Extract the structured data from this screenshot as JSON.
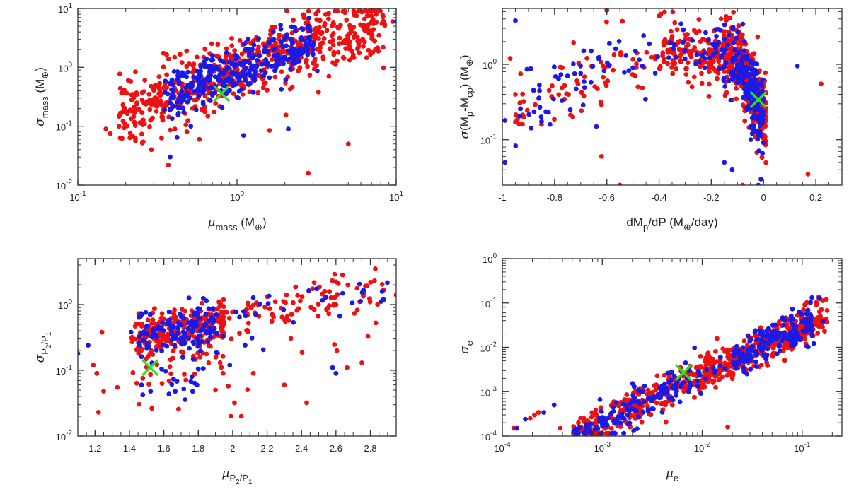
{
  "colors": {
    "group_a": "#ee1111",
    "group_b": "#1a1ae6",
    "highlight": "#33dd22",
    "axis": "#333333",
    "background": "#ffffff"
  },
  "chart_data": [
    {
      "id": "mass",
      "type": "scatter",
      "xscale": "log",
      "yscale": "log",
      "xlim": [
        0.1,
        10
      ],
      "ylim": [
        0.01,
        10
      ],
      "xticks": [
        {
          "v": 0.1,
          "base": "10",
          "exp": "-1"
        },
        {
          "v": 1,
          "base": "10",
          "exp": "0"
        },
        {
          "v": 10,
          "base": "10",
          "exp": "1"
        }
      ],
      "yticks": [
        {
          "v": 0.01,
          "base": "10",
          "exp": "-2"
        },
        {
          "v": 0.1,
          "base": "10",
          "exp": "-1"
        },
        {
          "v": 1,
          "base": "10",
          "exp": "0"
        },
        {
          "v": 10,
          "base": "10",
          "exp": "1"
        }
      ],
      "xlabel": {
        "symbol": "μ",
        "sub": "mass",
        "unit": " (M",
        "unit_sub": "⊕",
        "unit_end": ")"
      },
      "ylabel": {
        "symbol": "σ",
        "sub": "mass",
        "unit": " (M",
        "unit_sub": "⊕",
        "unit_end": ")"
      },
      "highlight": {
        "x": 0.8,
        "y": 0.36
      },
      "cloud": {
        "seed": 11,
        "red": 620,
        "blue": 330,
        "xmin": 0.15,
        "xmax": 9.5,
        "slope": 1.05,
        "anchor_x": 1.0,
        "anchor_y": 0.9,
        "spread": 0.32,
        "blue_xmin": 0.35,
        "blue_xmax": 3.2
      },
      "series": [
        {
          "name": "red",
          "x": [
            0.15,
            0.16,
            0.37,
            0.29,
            2.8,
            5.0,
            1.6,
            9.5,
            7.2,
            0.58
          ],
          "y": [
            0.09,
            0.075,
            0.022,
            0.04,
            0.016,
            0.05,
            0.085,
            6.0,
            5.5,
            0.06
          ]
        },
        {
          "name": "blue",
          "x": [
            0.42,
            1.1,
            2.1,
            10.0,
            0.38
          ],
          "y": [
            0.065,
            0.07,
            0.09,
            6.0,
            0.03
          ]
        }
      ]
    },
    {
      "id": "dmdp",
      "type": "scatter",
      "xscale": "linear",
      "yscale": "log",
      "xlim": [
        -1,
        0.3
      ],
      "ylim": [
        0.025,
        5.5
      ],
      "xticks": [
        {
          "v": -1,
          "t": "-1"
        },
        {
          "v": -0.8,
          "t": "-0.8"
        },
        {
          "v": -0.6,
          "t": "-0.6"
        },
        {
          "v": -0.4,
          "t": "-0.4"
        },
        {
          "v": -0.2,
          "t": "-0.2"
        },
        {
          "v": 0,
          "t": "0"
        },
        {
          "v": 0.2,
          "t": "0.2"
        }
      ],
      "yticks": [
        {
          "v": 0.1,
          "base": "10",
          "exp": "-1"
        },
        {
          "v": 1,
          "base": "10",
          "exp": "0"
        }
      ],
      "xlabel": {
        "text": "dM",
        "sub": "p",
        "text2": "/dP  (M",
        "sub2": "⊕",
        "text3": "/day)"
      },
      "ylabel": {
        "symbol": "σ",
        "text": "(M",
        "sub": "p",
        "text2": "-M",
        "sub2": "cp",
        "text3": ")  (M",
        "sub3": "⊕",
        "text4": ")"
      },
      "highlight": {
        "x": -0.02,
        "y": 0.34
      },
      "cloud": {
        "seed": 23,
        "red": 560,
        "blue": 300
      },
      "series": [
        {
          "name": "red",
          "x": [
            -0.6,
            -0.97,
            -0.93,
            -0.73,
            -0.62,
            -0.55,
            -0.08,
            0.17,
            0.22,
            -0.85,
            -0.95
          ],
          "y": [
            5.2,
            1.2,
            0.75,
            0.2,
            0.06,
            0.025,
            0.025,
            0.035,
            0.55,
            0.16,
            0.4
          ]
        },
        {
          "name": "blue",
          "x": [
            -0.95,
            -0.99,
            -0.88,
            -0.74,
            -0.64,
            -0.5,
            0.13,
            -0.12,
            -0.15,
            -0.02,
            -0.01,
            -0.99
          ],
          "y": [
            3.8,
            0.18,
            0.45,
            0.25,
            0.15,
            0.9,
            0.95,
            0.04,
            0.05,
            0.025,
            0.03,
            0.05
          ]
        }
      ]
    },
    {
      "id": "period",
      "type": "scatter",
      "xscale": "linear",
      "yscale": "log",
      "xlim": [
        1.1,
        2.95
      ],
      "ylim": [
        0.01,
        5
      ],
      "xticks": [
        {
          "v": 1.2,
          "t": "1.2"
        },
        {
          "v": 1.4,
          "t": "1.4"
        },
        {
          "v": 1.6,
          "t": "1.6"
        },
        {
          "v": 1.8,
          "t": "1.8"
        },
        {
          "v": 2.0,
          "t": "2"
        },
        {
          "v": 2.2,
          "t": "2.2"
        },
        {
          "v": 2.4,
          "t": "2.4"
        },
        {
          "v": 2.6,
          "t": "2.6"
        },
        {
          "v": 2.8,
          "t": "2.8"
        }
      ],
      "yticks": [
        {
          "v": 0.01,
          "base": "10",
          "exp": "-2"
        },
        {
          "v": 0.1,
          "base": "10",
          "exp": "-1"
        },
        {
          "v": 1,
          "base": "10",
          "exp": "0"
        }
      ],
      "xlabel": {
        "symbol": "μ",
        "sub": "P",
        "subsub": "2",
        "sub_mid": "/P",
        "subsub2": "1"
      },
      "ylabel": {
        "symbol": "σ",
        "sub": "P",
        "subsub": "2",
        "sub_mid": "/P",
        "subsub2": "1"
      },
      "highlight": {
        "x": 1.52,
        "y": 0.11
      },
      "cloud": {
        "seed": 37,
        "red": 380,
        "blue": 190
      },
      "series": [
        {
          "name": "red",
          "x": [
            1.22,
            1.25,
            1.19,
            1.21,
            1.33,
            1.99,
            2.01,
            2.05,
            2.43,
            2.75,
            2.95,
            1.24,
            2.3,
            2.12,
            1.9,
            1.86
          ],
          "y": [
            0.023,
            0.048,
            0.12,
            0.09,
            0.055,
            0.02,
            0.032,
            0.02,
            0.032,
            0.13,
            1.4,
            0.38,
            0.06,
            0.09,
            0.05,
            0.13
          ]
        },
        {
          "name": "blue",
          "x": [
            1.1,
            1.16,
            2.58,
            2.6,
            1.47
          ],
          "y": [
            0.18,
            0.24,
            0.11,
            0.09,
            0.06
          ]
        }
      ]
    },
    {
      "id": "ecc",
      "type": "scatter",
      "xscale": "log",
      "yscale": "log",
      "xlim": [
        0.0001,
        0.25
      ],
      "ylim": [
        0.0001,
        1
      ],
      "xticks": [
        {
          "v": 0.0001,
          "base": "10",
          "exp": "-4"
        },
        {
          "v": 0.001,
          "base": "10",
          "exp": "-3"
        },
        {
          "v": 0.01,
          "base": "10",
          "exp": "-2"
        },
        {
          "v": 0.1,
          "base": "10",
          "exp": "-1"
        }
      ],
      "yticks": [
        {
          "v": 0.0001,
          "base": "10",
          "exp": "-4"
        },
        {
          "v": 0.001,
          "base": "10",
          "exp": "-3"
        },
        {
          "v": 0.01,
          "base": "10",
          "exp": "-2"
        },
        {
          "v": 0.1,
          "base": "10",
          "exp": "-1"
        },
        {
          "v": 1,
          "base": "10",
          "exp": "0"
        }
      ],
      "xlabel": {
        "symbol": "μ",
        "sub": "e"
      },
      "ylabel": {
        "symbol": "σ",
        "sub": "e"
      },
      "highlight": {
        "x": 0.0065,
        "y": 0.0027
      },
      "cloud": {
        "seed": 53,
        "red": 600,
        "blue": 330
      },
      "series": [
        {
          "name": "red",
          "x": [
            0.00013,
            0.00021,
            0.00023,
            0.00038,
            0.00019,
            0.0019,
            0.018,
            0.0046
          ],
          "y": [
            0.00015,
            0.0003,
            0.00034,
            0.00015,
            0.00025,
            0.00016,
            0.00016,
            0.0006
          ]
        },
        {
          "name": "blue",
          "x": [
            0.00014,
            0.00017,
            0.00026,
            0.00033
          ],
          "y": [
            0.00015,
            0.00024,
            0.00034,
            0.0005
          ]
        }
      ]
    }
  ]
}
